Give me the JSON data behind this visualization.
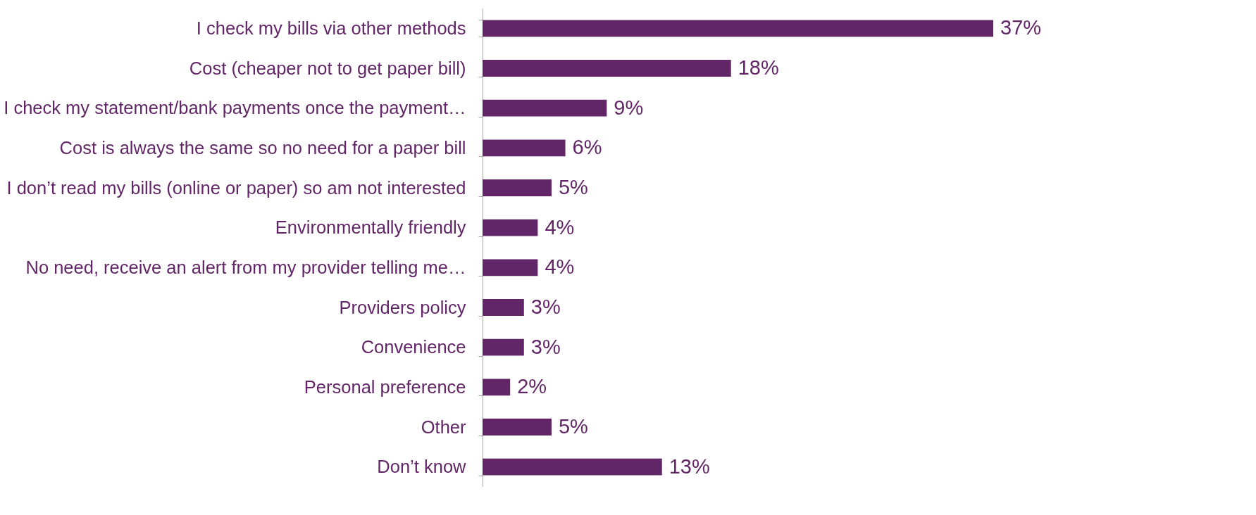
{
  "chart_data": {
    "type": "bar",
    "orientation": "horizontal",
    "color": "#622567",
    "categories": [
      "I check my bills via other methods",
      "Cost (cheaper not to get paper bill)",
      "I check my statement/bank payments once the payment…",
      "Cost is always the same so no need for a paper bill",
      "I don’t read my bills (online or paper) so am not interested",
      "Environmentally friendly",
      "No need, receive an alert from my provider telling me…",
      "Providers policy",
      "Convenience",
      "Personal preference",
      "Other",
      "Don’t know"
    ],
    "values": [
      37,
      18,
      9,
      6,
      5,
      4,
      4,
      3,
      3,
      2,
      5,
      13
    ],
    "value_labels": [
      "37%",
      "18%",
      "9%",
      "6%",
      "5%",
      "4%",
      "4%",
      "3%",
      "3%",
      "2%",
      "5%",
      "13%"
    ]
  }
}
